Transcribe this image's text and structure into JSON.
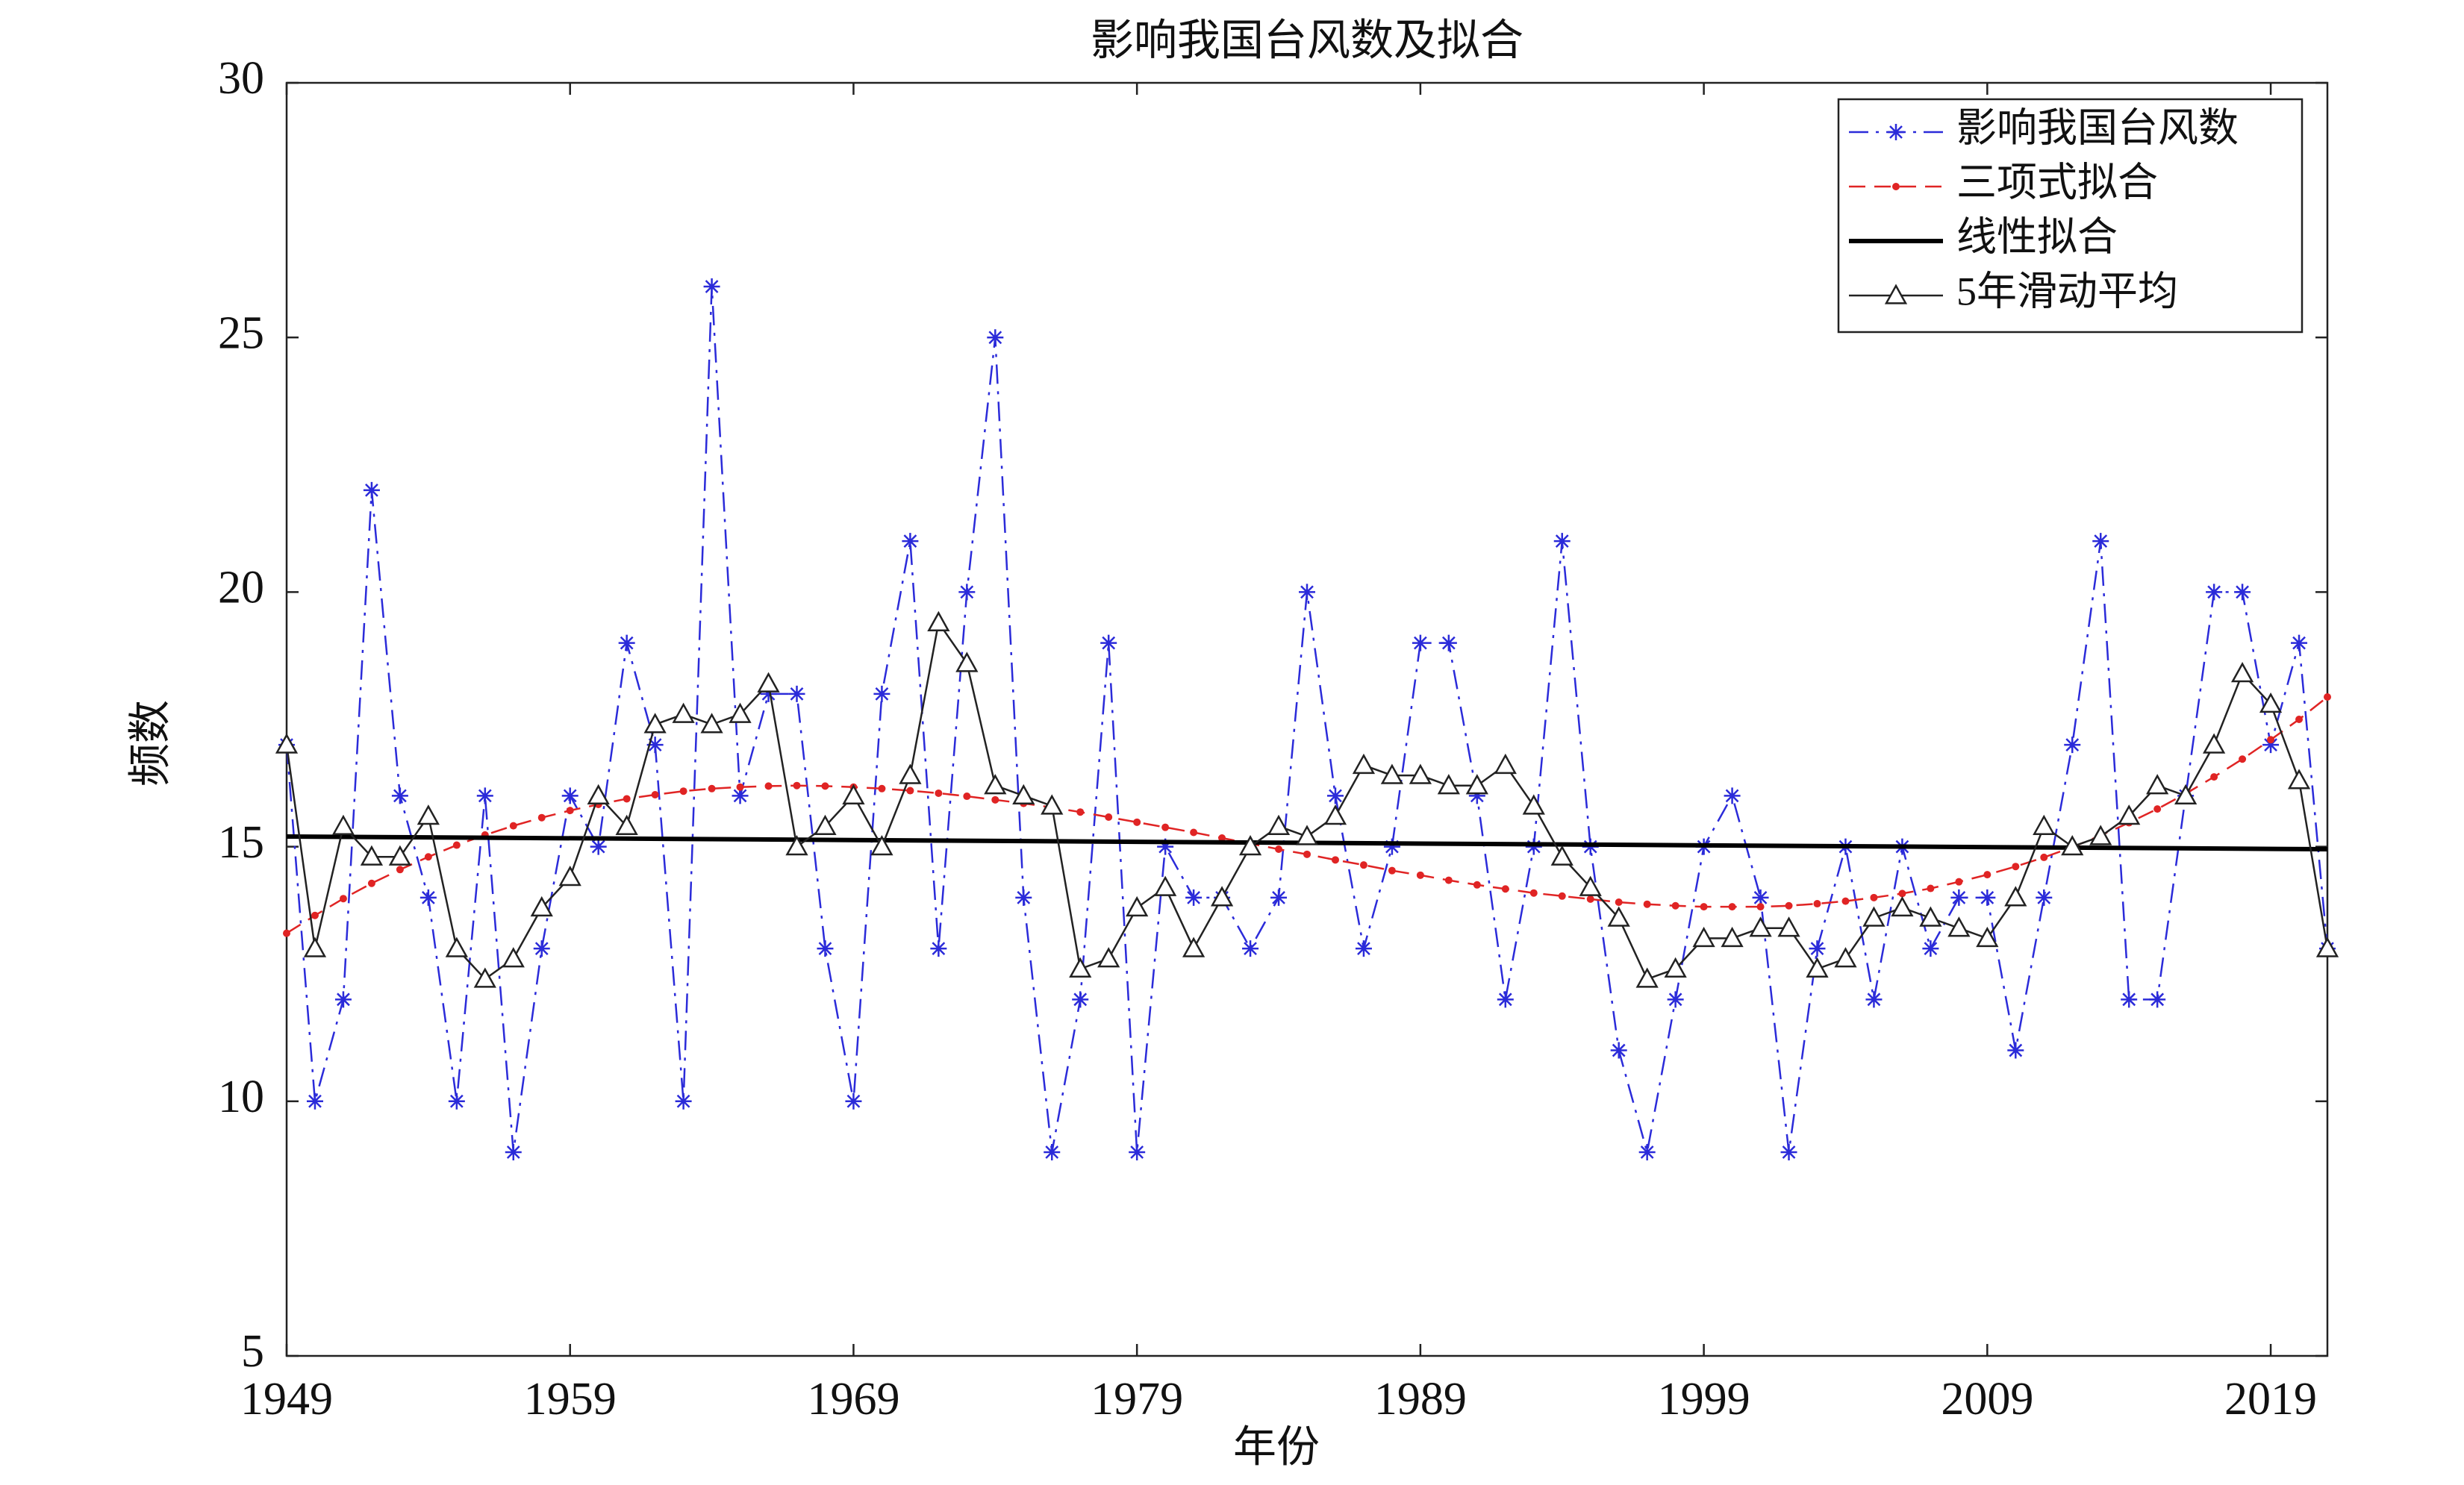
{
  "chart_data": {
    "type": "line",
    "title": "影响我国台风数及拟合",
    "x_label": "年份",
    "y_label": "频数",
    "x": [
      1949,
      1950,
      1951,
      1952,
      1953,
      1954,
      1955,
      1956,
      1957,
      1958,
      1959,
      1960,
      1961,
      1962,
      1963,
      1964,
      1965,
      1966,
      1967,
      1968,
      1969,
      1970,
      1971,
      1972,
      1973,
      1974,
      1975,
      1976,
      1977,
      1978,
      1979,
      1980,
      1981,
      1982,
      1983,
      1984,
      1985,
      1986,
      1987,
      1988,
      1989,
      1990,
      1991,
      1992,
      1993,
      1994,
      1995,
      1996,
      1997,
      1998,
      1999,
      2000,
      2001,
      2002,
      2003,
      2004,
      2005,
      2006,
      2007,
      2008,
      2009,
      2010,
      2011,
      2012,
      2013,
      2014,
      2015,
      2016,
      2017,
      2018,
      2019,
      2020,
      2021
    ],
    "series": [
      {
        "name": "影响我国台风数",
        "color": "#2b2bd9",
        "linestyle": "dashdot",
        "marker": "star",
        "values": [
          17,
          10,
          12,
          22,
          16,
          14,
          10,
          16,
          9,
          13,
          16,
          15,
          19,
          17,
          10,
          26,
          16,
          18,
          18,
          13,
          10,
          18,
          21,
          13,
          20,
          25,
          14,
          9,
          12,
          19,
          9,
          15,
          14,
          14,
          13,
          14,
          20,
          16,
          13,
          15,
          19,
          19,
          16,
          12,
          15,
          21,
          15,
          11,
          9,
          12,
          15,
          16,
          14,
          9,
          13,
          15,
          12,
          15,
          13,
          14,
          14,
          11,
          14,
          17,
          21,
          12,
          12,
          16,
          20,
          20,
          17,
          19,
          13
        ]
      },
      {
        "name": "三项式拟合",
        "color": "#e02424",
        "linestyle": "dashed",
        "marker": "dot",
        "values": [
          13.3,
          13.65,
          13.98,
          14.28,
          14.55,
          14.8,
          15.03,
          15.23,
          15.41,
          15.57,
          15.71,
          15.83,
          15.94,
          16.02,
          16.09,
          16.14,
          16.17,
          16.19,
          16.2,
          16.19,
          16.17,
          16.14,
          16.1,
          16.05,
          15.99,
          15.92,
          15.85,
          15.77,
          15.68,
          15.58,
          15.48,
          15.38,
          15.28,
          15.17,
          15.06,
          14.95,
          14.85,
          14.74,
          14.64,
          14.53,
          14.44,
          14.34,
          14.25,
          14.17,
          14.09,
          14.03,
          13.97,
          13.91,
          13.87,
          13.84,
          13.82,
          13.82,
          13.82,
          13.84,
          13.88,
          13.93,
          14.0,
          14.08,
          14.18,
          14.31,
          14.45,
          14.61,
          14.79,
          14.99,
          15.22,
          15.47,
          15.74,
          16.04,
          16.37,
          16.72,
          17.1,
          17.5,
          17.94
        ]
      },
      {
        "name": "线性拟合",
        "color": "#000000",
        "linestyle": "solid",
        "marker": "none",
        "linewidth": 6,
        "x": [
          1949,
          2021
        ],
        "values": [
          15.2,
          14.95
        ]
      },
      {
        "name": "5年滑动平均",
        "color": "#222222",
        "linestyle": "solid",
        "marker": "triangle",
        "values": [
          17,
          13,
          15.4,
          14.8,
          14.8,
          15.6,
          13,
          12.4,
          12.8,
          13.8,
          14.4,
          16,
          15.4,
          17.4,
          17.6,
          17.4,
          17.6,
          18.2,
          15,
          15.4,
          16,
          15,
          16.4,
          19.4,
          18.6,
          16.2,
          16,
          15.8,
          12.6,
          12.8,
          13.8,
          14.2,
          13,
          14,
          15,
          15.4,
          15.2,
          15.6,
          16.6,
          16.4,
          16.4,
          16.2,
          16.2,
          16.6,
          15.8,
          14.8,
          14.2,
          13.6,
          12.4,
          12.6,
          13.2,
          13.2,
          13.4,
          13.4,
          12.6,
          12.8,
          13.6,
          13.8,
          13.6,
          13.4,
          13.2,
          14,
          15.4,
          15,
          15.2,
          15.6,
          16.2,
          16,
          17,
          18.4,
          17.8,
          16.3,
          13
        ]
      }
    ],
    "xlim": [
      1949,
      2021
    ],
    "ylim": [
      5,
      30
    ],
    "xticks": [
      1949,
      1959,
      1969,
      1979,
      1989,
      1999,
      2009,
      2019
    ],
    "yticks": [
      5,
      10,
      15,
      20,
      25,
      30
    ],
    "grid": false,
    "legend": "upper right"
  }
}
